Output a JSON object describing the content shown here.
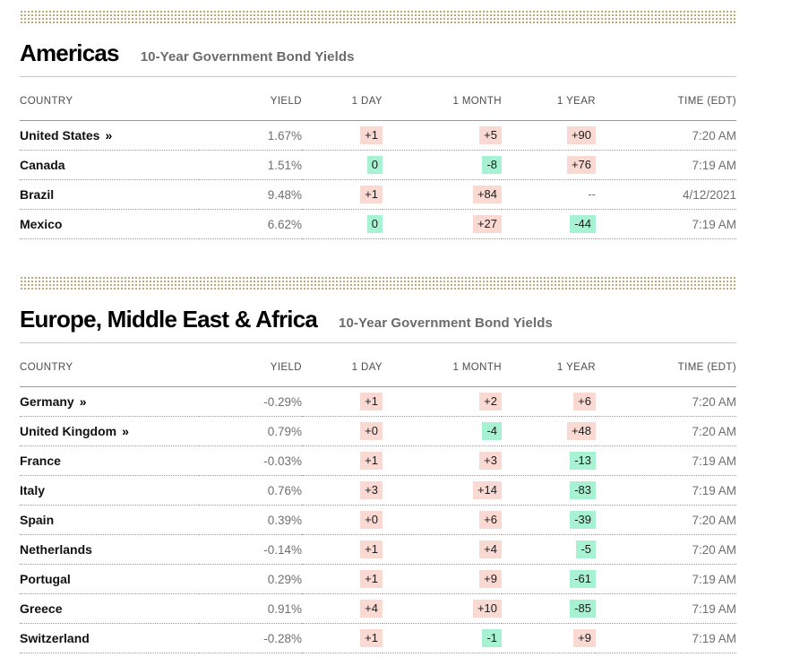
{
  "link_marker": "»",
  "colors": {
    "accent_band": "#b49a5e",
    "badge_up_bg": "#fbd9d3",
    "badge_down_bg": "#a8f2d4",
    "muted_text": "#6f6f6f"
  },
  "columns": [
    "COUNTRY",
    "YIELD",
    "1 DAY",
    "1 MONTH",
    "1 YEAR",
    "TIME (EDT)"
  ],
  "sections": [
    {
      "title": "Americas",
      "subtitle": "10-Year Government Bond Yields",
      "rows": [
        {
          "country": "United States",
          "link": true,
          "yield": "1.67%",
          "day": {
            "text": "+1",
            "tone": "up"
          },
          "month": {
            "text": "+5",
            "tone": "up"
          },
          "year": {
            "text": "+90",
            "tone": "up"
          },
          "time": "7:20 AM"
        },
        {
          "country": "Canada",
          "link": false,
          "yield": "1.51%",
          "day": {
            "text": "0",
            "tone": "down"
          },
          "month": {
            "text": "-8",
            "tone": "down"
          },
          "year": {
            "text": "+76",
            "tone": "up"
          },
          "time": "7:19 AM"
        },
        {
          "country": "Brazil",
          "link": false,
          "yield": "9.48%",
          "day": {
            "text": "+1",
            "tone": "up"
          },
          "month": {
            "text": "+84",
            "tone": "up"
          },
          "year": {
            "text": "--",
            "tone": "none"
          },
          "time": "4/12/2021"
        },
        {
          "country": "Mexico",
          "link": false,
          "yield": "6.62%",
          "day": {
            "text": "0",
            "tone": "down"
          },
          "month": {
            "text": "+27",
            "tone": "up"
          },
          "year": {
            "text": "-44",
            "tone": "down"
          },
          "time": "7:19 AM"
        }
      ]
    },
    {
      "title": "Europe, Middle East & Africa",
      "subtitle": "10-Year Government Bond Yields",
      "rows": [
        {
          "country": "Germany",
          "link": true,
          "yield": "-0.29%",
          "day": {
            "text": "+1",
            "tone": "up"
          },
          "month": {
            "text": "+2",
            "tone": "up"
          },
          "year": {
            "text": "+6",
            "tone": "up"
          },
          "time": "7:20 AM"
        },
        {
          "country": "United Kingdom",
          "link": true,
          "yield": "0.79%",
          "day": {
            "text": "+0",
            "tone": "up"
          },
          "month": {
            "text": "-4",
            "tone": "down"
          },
          "year": {
            "text": "+48",
            "tone": "up"
          },
          "time": "7:20 AM"
        },
        {
          "country": "France",
          "link": false,
          "yield": "-0.03%",
          "day": {
            "text": "+1",
            "tone": "up"
          },
          "month": {
            "text": "+3",
            "tone": "up"
          },
          "year": {
            "text": "-13",
            "tone": "down"
          },
          "time": "7:19 AM"
        },
        {
          "country": "Italy",
          "link": false,
          "yield": "0.76%",
          "day": {
            "text": "+3",
            "tone": "up"
          },
          "month": {
            "text": "+14",
            "tone": "up"
          },
          "year": {
            "text": "-83",
            "tone": "down"
          },
          "time": "7:19 AM"
        },
        {
          "country": "Spain",
          "link": false,
          "yield": "0.39%",
          "day": {
            "text": "+0",
            "tone": "up"
          },
          "month": {
            "text": "+6",
            "tone": "up"
          },
          "year": {
            "text": "-39",
            "tone": "down"
          },
          "time": "7:20 AM"
        },
        {
          "country": "Netherlands",
          "link": false,
          "yield": "-0.14%",
          "day": {
            "text": "+1",
            "tone": "up"
          },
          "month": {
            "text": "+4",
            "tone": "up"
          },
          "year": {
            "text": "-5",
            "tone": "down"
          },
          "time": "7:20 AM"
        },
        {
          "country": "Portugal",
          "link": false,
          "yield": "0.29%",
          "day": {
            "text": "+1",
            "tone": "up"
          },
          "month": {
            "text": "+9",
            "tone": "up"
          },
          "year": {
            "text": "-61",
            "tone": "down"
          },
          "time": "7:19 AM"
        },
        {
          "country": "Greece",
          "link": false,
          "yield": "0.91%",
          "day": {
            "text": "+4",
            "tone": "up"
          },
          "month": {
            "text": "+10",
            "tone": "up"
          },
          "year": {
            "text": "-85",
            "tone": "down"
          },
          "time": "7:19 AM"
        },
        {
          "country": "Switzerland",
          "link": false,
          "yield": "-0.28%",
          "day": {
            "text": "+1",
            "tone": "up"
          },
          "month": {
            "text": "-1",
            "tone": "down"
          },
          "year": {
            "text": "+9",
            "tone": "up"
          },
          "time": "7:19 AM"
        }
      ]
    }
  ]
}
